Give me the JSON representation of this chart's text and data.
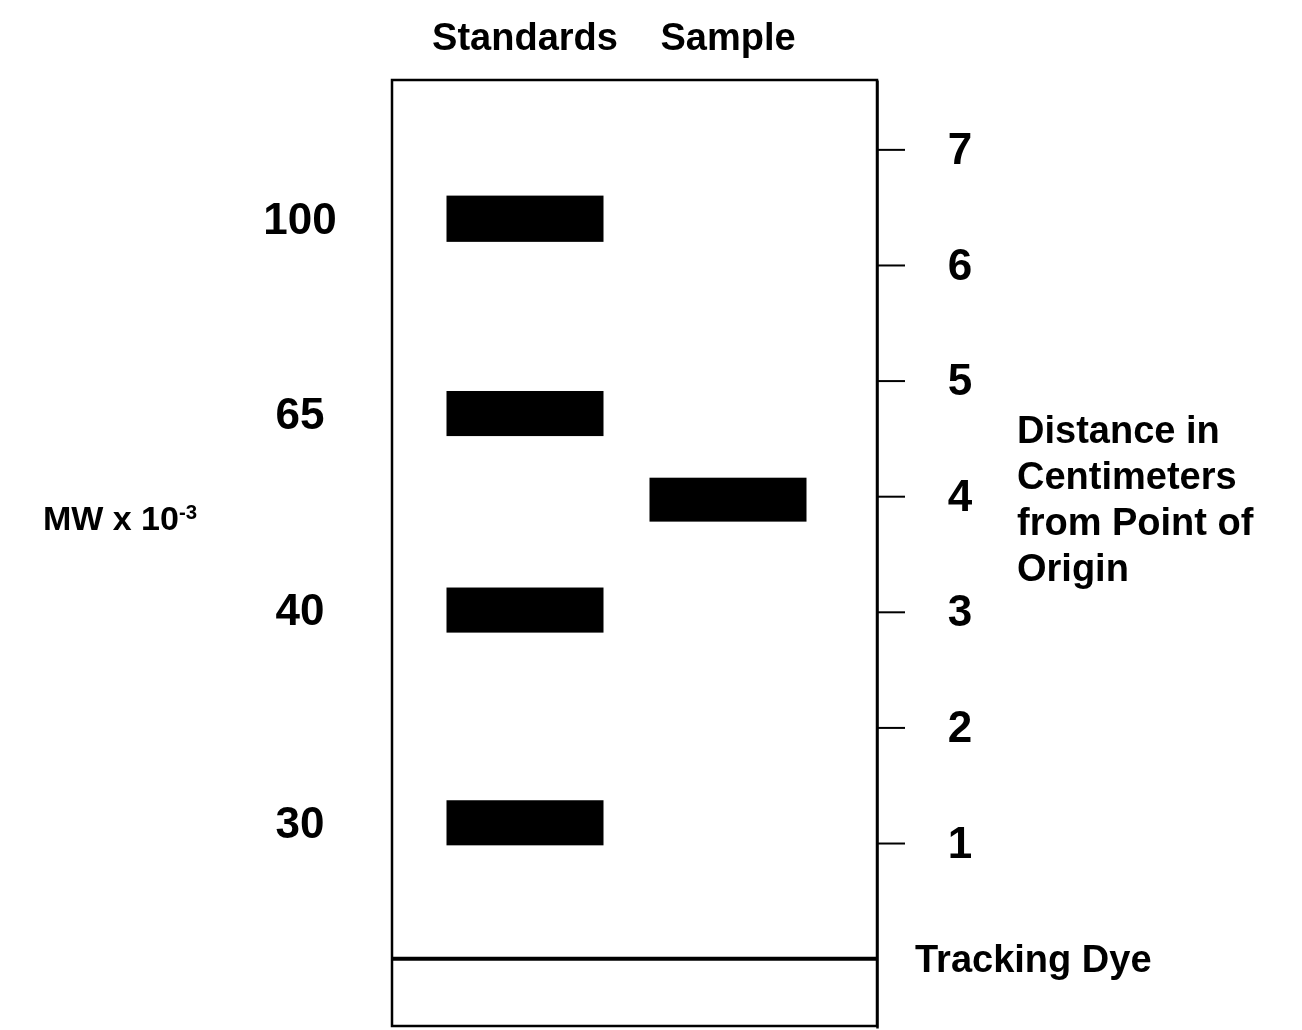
{
  "chart_data": {
    "type": "bar",
    "categories": [
      "Standards",
      "Sample"
    ],
    "ylabel": "Distance in Centimeters from Point of Origin",
    "ylim": [
      -0.6,
      7.6
    ],
    "yticks": [
      1,
      2,
      3,
      4,
      5,
      6,
      7
    ],
    "series": [
      {
        "color": "#000000",
        "values": [
          0.4,
          0.38
        ],
        "base": [
          6.2,
          3.78
        ]
      },
      {
        "color": "#000000",
        "values": [
          0.39,
          null
        ],
        "base": [
          4.52,
          null
        ]
      },
      {
        "color": "#000000",
        "values": [
          0.39,
          null
        ],
        "base": [
          2.82,
          null
        ]
      },
      {
        "color": "#000000",
        "values": [
          0.39,
          null
        ],
        "base": [
          0.98,
          null
        ]
      }
    ],
    "ref_lines": [
      {
        "axis": "y",
        "value": 0,
        "label": "Tracking Dye"
      }
    ],
    "annotations": [
      "MW x 10$^{-3}$",
      "100",
      "65",
      "40",
      "30"
    ]
  }
}
